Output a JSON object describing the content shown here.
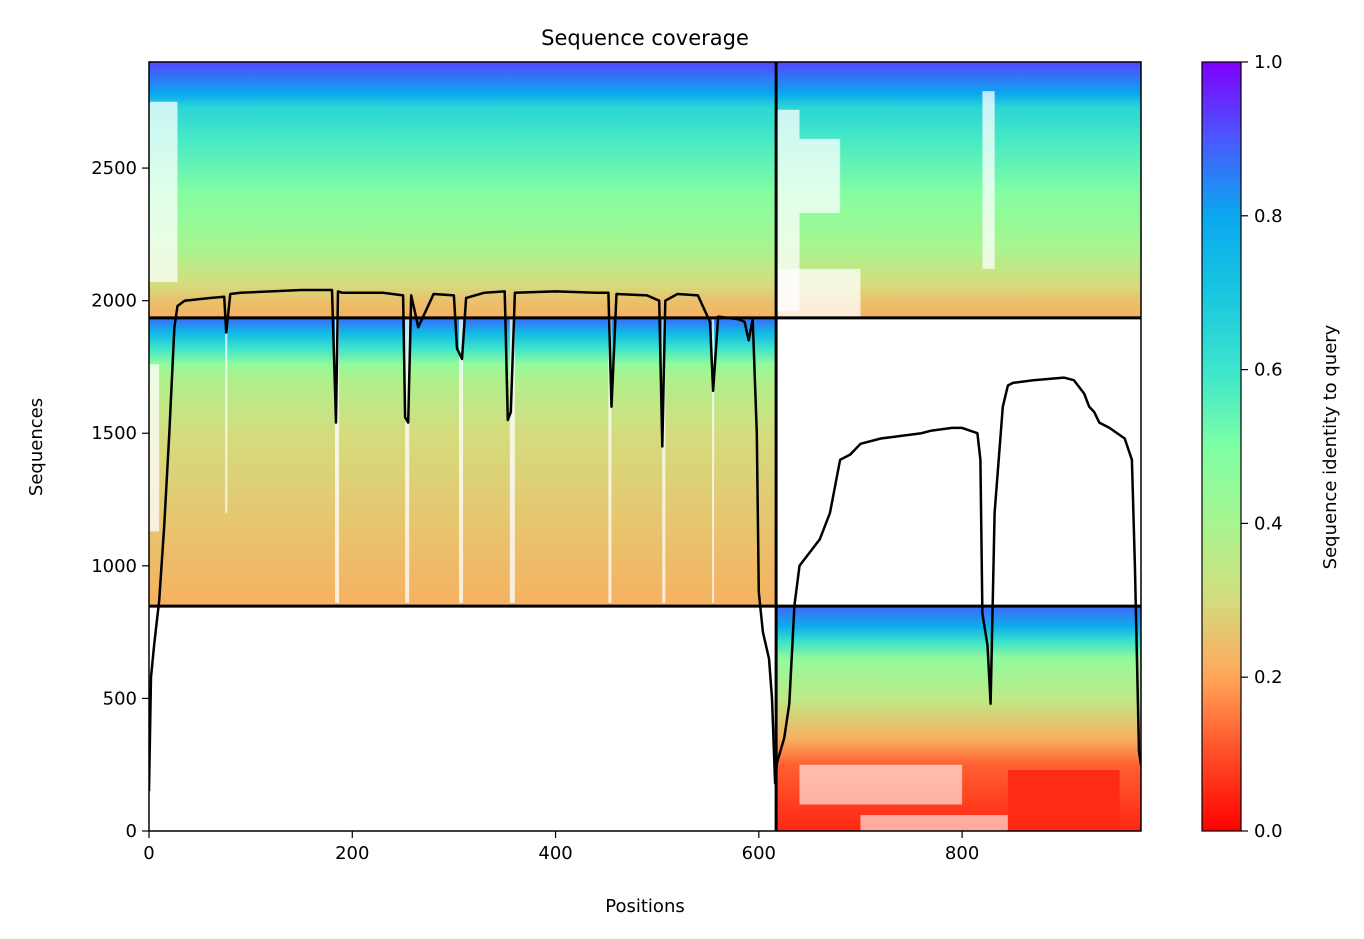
{
  "chart_data": {
    "type": "heatmap",
    "title": "Sequence coverage",
    "xlabel": "Positions",
    "ylabel": "Sequences",
    "xlim": [
      0,
      976
    ],
    "ylim": [
      0,
      2900
    ],
    "xticks": [
      0,
      200,
      400,
      600,
      800
    ],
    "yticks": [
      0,
      500,
      1000,
      1500,
      2000,
      2500
    ],
    "colorbar": {
      "label": "Sequence identity to query",
      "range": [
        0,
        1
      ],
      "ticks": [
        "0.0",
        "0.2",
        "0.4",
        "0.6",
        "0.8",
        "1.0"
      ],
      "colormap": "rainbow_r"
    },
    "separators": {
      "vertical_x": 617,
      "horizontal_y": [
        1935,
        848
      ]
    },
    "blocks": [
      {
        "name": "block-1",
        "x": [
          0,
          617
        ],
        "y": [
          848,
          1935
        ],
        "identity_gradient": [
          [
            848,
            0.22
          ],
          [
            1100,
            0.25
          ],
          [
            1500,
            0.3
          ],
          [
            1700,
            0.38
          ],
          [
            1760,
            0.45
          ],
          [
            1820,
            0.6
          ],
          [
            1880,
            0.75
          ],
          [
            1935,
            0.88
          ]
        ]
      },
      {
        "name": "block-2",
        "x": [
          617,
          976
        ],
        "y": [
          1935,
          2900
        ],
        "identity_gradient": [
          [
            1935,
            0.22
          ],
          [
            2000,
            0.25
          ],
          [
            2060,
            0.3
          ],
          [
            2200,
            0.4
          ],
          [
            2400,
            0.48
          ],
          [
            2600,
            0.58
          ],
          [
            2730,
            0.65
          ],
          [
            2780,
            0.8
          ],
          [
            2900,
            0.92
          ]
        ]
      },
      {
        "name": "block-3",
        "x": [
          617,
          976
        ],
        "y": [
          0,
          848
        ],
        "identity_gradient": [
          [
            0,
            0.05
          ],
          [
            250,
            0.12
          ],
          [
            350,
            0.22
          ],
          [
            500,
            0.35
          ],
          [
            650,
            0.45
          ],
          [
            720,
            0.62
          ],
          [
            770,
            0.78
          ],
          [
            848,
            0.88
          ]
        ]
      },
      {
        "name": "block-4",
        "x": [
          0,
          617
        ],
        "y": [
          1935,
          2900
        ],
        "identity_gradient": [
          [
            1935,
            0.22
          ],
          [
            2000,
            0.25
          ],
          [
            2060,
            0.3
          ],
          [
            2200,
            0.4
          ],
          [
            2400,
            0.48
          ],
          [
            2600,
            0.58
          ],
          [
            2730,
            0.65
          ],
          [
            2780,
            0.8
          ],
          [
            2900,
            0.92
          ]
        ]
      }
    ],
    "series": [
      {
        "x": [
          0,
          2,
          5,
          10,
          15,
          20,
          25,
          28,
          35,
          60,
          74,
          76,
          80,
          90,
          120,
          150,
          180,
          184,
          186,
          190,
          210,
          230,
          250,
          252,
          255,
          258,
          265,
          280,
          300,
          303,
          308,
          312,
          330,
          350,
          353,
          356,
          360,
          400,
          440,
          452,
          455,
          460,
          490,
          502,
          505,
          508,
          520,
          540,
          552,
          555,
          560,
          580,
          586,
          590,
          594,
          598,
          600,
          604,
          610,
          613,
          616,
          618,
          625,
          630,
          635,
          640,
          660,
          670,
          680,
          690,
          700,
          720,
          740,
          760,
          770,
          790,
          800,
          815,
          818,
          820,
          825,
          828,
          832,
          840,
          845,
          850,
          870,
          900,
          910,
          920,
          925,
          930,
          935,
          945,
          960,
          967,
          970,
          974,
          976
        ],
        "y": [
          150,
          580,
          700,
          870,
          1150,
          1500,
          1900,
          1980,
          2000,
          2010,
          2015,
          1880,
          2025,
          2030,
          2035,
          2040,
          2040,
          1540,
          2035,
          2030,
          2030,
          2030,
          2020,
          1560,
          1540,
          2020,
          1900,
          2025,
          2020,
          1820,
          1780,
          2010,
          2030,
          2035,
          1550,
          1580,
          2030,
          2035,
          2030,
          2030,
          1600,
          2025,
          2020,
          2000,
          1450,
          2000,
          2025,
          2020,
          1920,
          1660,
          1940,
          1930,
          1920,
          1850,
          1930,
          1500,
          900,
          750,
          650,
          500,
          180,
          260,
          350,
          480,
          850,
          1000,
          1100,
          1200,
          1400,
          1420,
          1460,
          1480,
          1490,
          1500,
          1510,
          1520,
          1520,
          1500,
          1400,
          820,
          700,
          480,
          1200,
          1600,
          1680,
          1690,
          1700,
          1710,
          1700,
          1650,
          1600,
          1580,
          1540,
          1520,
          1480,
          1400,
          1000,
          300,
          250
        ]
      }
    ]
  }
}
